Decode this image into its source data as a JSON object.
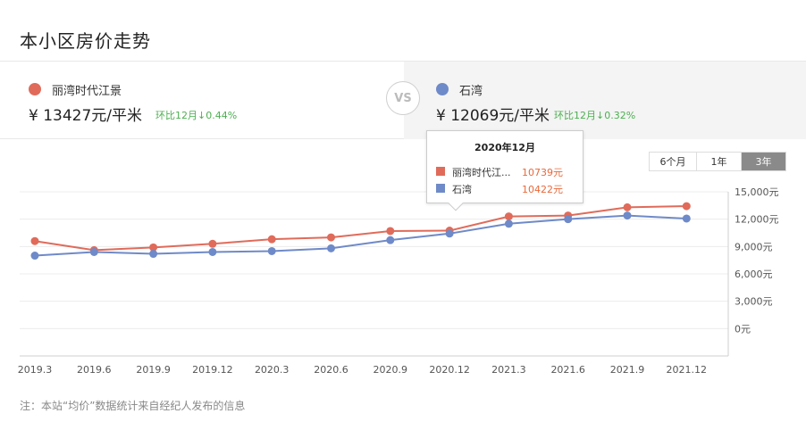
{
  "page": {
    "title": "本小区房价走势",
    "note": "注：本站“均价”数据统计来自经纪人发布的信息"
  },
  "compare": {
    "vs_label": "VS",
    "left": {
      "name": "丽湾时代江景",
      "price": "¥ 13427元/平米",
      "mom": "环比12月↓0.44%",
      "color": "#e06b5a"
    },
    "right": {
      "name": "石湾",
      "price": "¥ 12069元/平米",
      "mom": "环比12月↓0.32%",
      "color": "#6f8ac8"
    }
  },
  "range_tabs": [
    {
      "label": "6个月",
      "active": false
    },
    {
      "label": "1年",
      "active": false
    },
    {
      "label": "3年",
      "active": true
    }
  ],
  "tooltip": {
    "title": "2020年12月",
    "rows": [
      {
        "name": "丽湾时代江...",
        "value": "10739元"
      },
      {
        "name": "石湾",
        "value": "10422元"
      }
    ]
  },
  "chart_data": {
    "type": "line",
    "x": [
      "2019.3",
      "2019.6",
      "2019.9",
      "2019.12",
      "2020.3",
      "2020.6",
      "2020.9",
      "2020.12",
      "2021.3",
      "2021.6",
      "2021.9",
      "2021.12"
    ],
    "yticks": [
      "15,000元",
      "12,000元",
      "9,000元",
      "6,000元",
      "3,000元",
      "0元"
    ],
    "ylim": [
      -3000,
      15000
    ],
    "grid": true,
    "series": [
      {
        "name": "丽湾时代江景",
        "color": "#e06b5a",
        "values": [
          9600,
          8600,
          8900,
          9300,
          9800,
          10000,
          10700,
          10739,
          12300,
          12400,
          13300,
          13427
        ]
      },
      {
        "name": "石湾",
        "color": "#6f8ac8",
        "values": [
          8000,
          8400,
          8200,
          8400,
          8500,
          8800,
          9700,
          10422,
          11500,
          12000,
          12400,
          12069
        ]
      }
    ]
  }
}
